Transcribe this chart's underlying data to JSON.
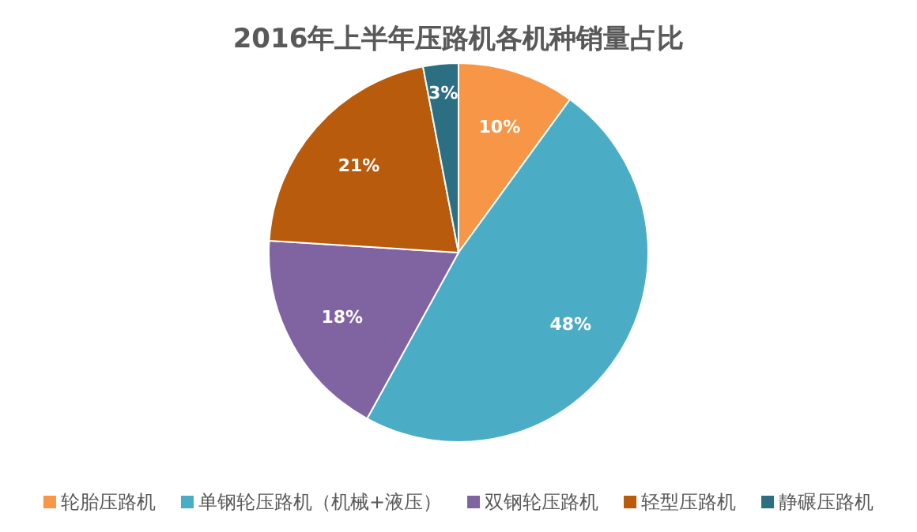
{
  "chart_data": {
    "type": "pie",
    "title": "2016年上半年压路机各机种销量占比",
    "categories": [
      "轮胎压路机",
      "单钢轮压路机（机械+液压）",
      "双钢轮压路机",
      "轻型压路机",
      "静碾压路机"
    ],
    "values": [
      10,
      48,
      18,
      21,
      3
    ],
    "colors": [
      "#f79646",
      "#4bacc6",
      "#8064a2",
      "#b85b0c",
      "#2c6e82"
    ],
    "value_labels": [
      "10%",
      "48%",
      "18%",
      "21%",
      "3%"
    ],
    "legend": "bottom"
  }
}
